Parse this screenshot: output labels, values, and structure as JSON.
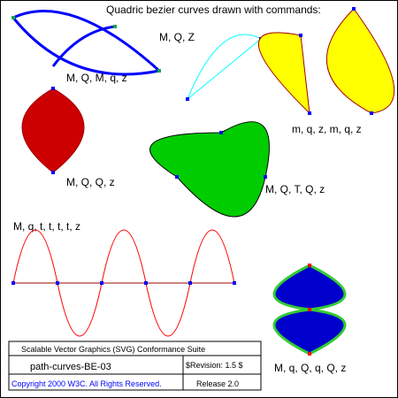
{
  "title": "Quadric bezier curves drawn with commands:",
  "labels": {
    "mqz": "M, Q, Z",
    "mqmqz": "M, Q, M, q, z",
    "mqzmqz": "m, q, z, m, q, z",
    "mqqz": "M, Q, Q, z",
    "mqtqz": "M, Q, T, Q, z",
    "mqttttz": "M, q, t, t, t, t, z",
    "mqqqqz": "M, q, Q, q, Q, z"
  },
  "footer": {
    "suite": "Scalable Vector Graphics (SVG) Conformance Suite",
    "test_name": "path-curves-BE-03",
    "revision": "$Revision: 1.5 $",
    "copyright": "Copyright 2000 W3C. All Rights Reserved.",
    "release": "Release 2.0"
  },
  "colors": {
    "blue": "#0000ff",
    "cyan": "#00ffff",
    "yellow": "#ffff00",
    "dark_red_stroke": "#a00000",
    "red_fill": "#cc0000",
    "green_fill": "#00cc00",
    "green_marker": "#00aa44",
    "red": "#ff0000",
    "navy_fill": "#0000cc",
    "green_stroke": "#33cc33"
  }
}
